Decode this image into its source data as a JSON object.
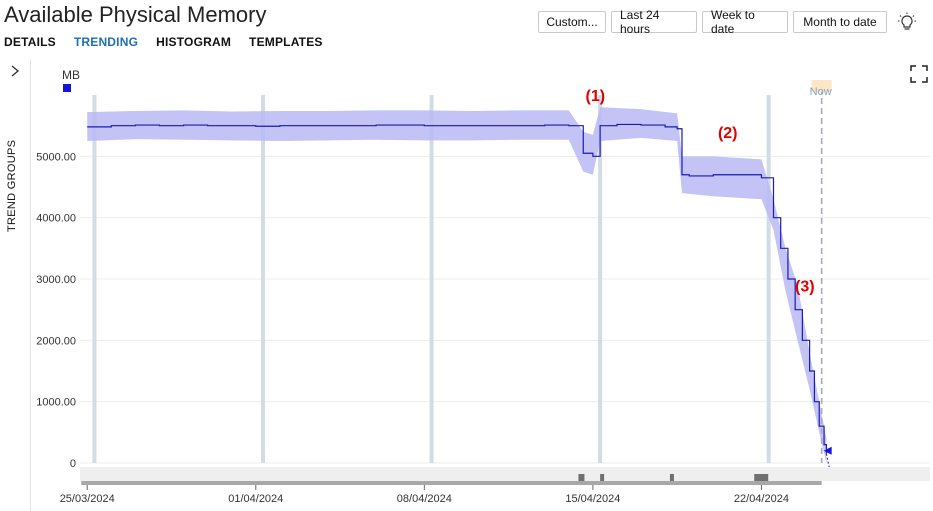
{
  "window": {
    "title": "Available Physical Memory"
  },
  "tabs": [
    {
      "label": "DETAILS",
      "active": false
    },
    {
      "label": "TRENDING",
      "active": true
    },
    {
      "label": "HISTOGRAM",
      "active": false
    },
    {
      "label": "TEMPLATES",
      "active": false
    }
  ],
  "toolbar": {
    "custom_label": "Custom...",
    "last24_label": "Last 24 hours",
    "week_label": "Week to date",
    "month_label": "Month to date",
    "theme_icon": "lightbulb-icon"
  },
  "sidebar": {
    "label": "TREND GROUPS",
    "icon": "chevron-right-icon"
  },
  "chart": {
    "unit_label": "MB",
    "now_label": "Now",
    "annotations": [
      "(1)",
      "(2)",
      "(3)"
    ]
  },
  "colors": {
    "line": "#1a1ab8",
    "band": "#b8b8f5",
    "accent": "#1f6fb5",
    "annotation": "#e00000",
    "legend": "#1414d8"
  },
  "chart_data": {
    "type": "line",
    "ylabel": "MB",
    "ylim": [
      0,
      6000
    ],
    "y_ticks": [
      "0",
      "1000.00",
      "2000.00",
      "3000.00",
      "4000.00",
      "5000.00"
    ],
    "x_ticks": [
      "25/03/2024",
      "01/04/2024",
      "08/04/2024",
      "15/04/2024",
      "22/04/2024"
    ],
    "x_range_days": [
      -0.3,
      35
    ],
    "now_day": 30.5,
    "series": [
      {
        "points": [
          [
            0,
            5480
          ],
          [
            1,
            5500
          ],
          [
            2,
            5510
          ],
          [
            3,
            5500
          ],
          [
            4,
            5510
          ],
          [
            5,
            5500
          ],
          [
            6,
            5500
          ],
          [
            7,
            5490
          ],
          [
            8,
            5500
          ],
          [
            9,
            5500
          ],
          [
            10,
            5500
          ],
          [
            11,
            5500
          ],
          [
            12,
            5510
          ],
          [
            13,
            5510
          ],
          [
            14,
            5500
          ],
          [
            15,
            5500
          ],
          [
            16,
            5500
          ],
          [
            17,
            5500
          ],
          [
            18,
            5500
          ],
          [
            19,
            5510
          ],
          [
            20,
            5500
          ],
          [
            20.6,
            5050
          ],
          [
            21,
            5000
          ],
          [
            21.3,
            5500
          ],
          [
            22,
            5520
          ],
          [
            23,
            5510
          ],
          [
            24,
            5480
          ],
          [
            24.5,
            5450
          ],
          [
            24.7,
            4700
          ],
          [
            25,
            4680
          ],
          [
            26,
            4700
          ],
          [
            27,
            4700
          ],
          [
            27.5,
            4700
          ],
          [
            28,
            4650
          ],
          [
            28.5,
            4000
          ],
          [
            28.8,
            3500
          ],
          [
            29.1,
            3000
          ],
          [
            29.4,
            2500
          ],
          [
            29.7,
            2000
          ],
          [
            30,
            1500
          ],
          [
            30.2,
            1000
          ],
          [
            30.4,
            600
          ],
          [
            30.6,
            300
          ],
          [
            30.7,
            150
          ]
        ],
        "band": [
          [
            0,
            5250,
            5720
          ],
          [
            2,
            5280,
            5740
          ],
          [
            4,
            5270,
            5750
          ],
          [
            6,
            5260,
            5730
          ],
          [
            8,
            5250,
            5740
          ],
          [
            10,
            5260,
            5740
          ],
          [
            12,
            5270,
            5750
          ],
          [
            14,
            5260,
            5750
          ],
          [
            16,
            5260,
            5740
          ],
          [
            18,
            5270,
            5750
          ],
          [
            20,
            5270,
            5750
          ],
          [
            20.6,
            4750,
            5400
          ],
          [
            21,
            4700,
            5350
          ],
          [
            21.3,
            5250,
            5800
          ],
          [
            23,
            5300,
            5770
          ],
          [
            24.5,
            5250,
            5700
          ],
          [
            24.7,
            4400,
            5000
          ],
          [
            26,
            4350,
            5000
          ],
          [
            28,
            4300,
            4950
          ],
          [
            28.5,
            3800,
            4300
          ],
          [
            29,
            2800,
            3500
          ],
          [
            29.5,
            2000,
            2900
          ],
          [
            30,
            1200,
            1800
          ],
          [
            30.4,
            500,
            1000
          ],
          [
            30.7,
            0,
            400
          ]
        ],
        "end_marker": 200
      }
    ],
    "annotations": [
      {
        "label": "(1)",
        "x_day": 21.1,
        "y": 5900
      },
      {
        "label": "(2)",
        "x_day": 26.6,
        "y": 5300
      },
      {
        "label": "(3)",
        "x_day": 29.8,
        "y": 2800
      }
    ],
    "vertical_markers_days": [
      0.3,
      7.3,
      14.3,
      21.3,
      28.3
    ]
  }
}
